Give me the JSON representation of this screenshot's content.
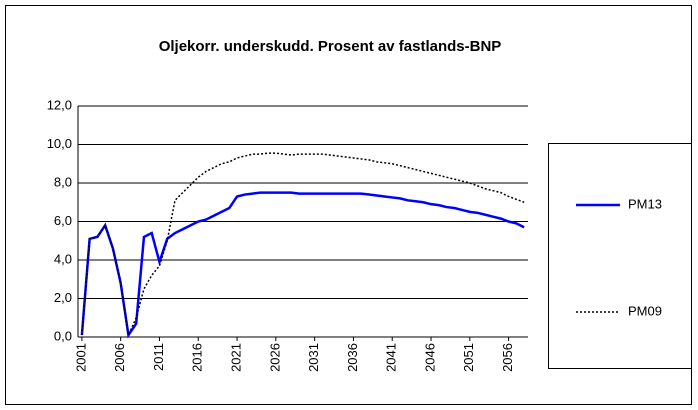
{
  "chart_data": {
    "type": "line",
    "title": "Oljekorr. underskudd. Prosent av fastlands-BNP",
    "categories": [
      "2001",
      null,
      null,
      null,
      null,
      "2006",
      null,
      null,
      null,
      null,
      "2011",
      null,
      null,
      null,
      null,
      "2016",
      null,
      null,
      null,
      null,
      "2021",
      null,
      null,
      null,
      null,
      "2026",
      null,
      null,
      null,
      null,
      "2031",
      null,
      null,
      null,
      null,
      "2036",
      null,
      null,
      null,
      null,
      "2041",
      null,
      null,
      null,
      null,
      "2046",
      null,
      null,
      null,
      null,
      "2051",
      null,
      null,
      null,
      null,
      "2056",
      null,
      null
    ],
    "series": [
      {
        "name": "PM13",
        "color": "#0000ff",
        "dash": "solid",
        "values": [
          0.1,
          5.1,
          5.2,
          5.8,
          4.6,
          2.8,
          0.1,
          0.7,
          5.2,
          5.4,
          3.9,
          5.1,
          5.4,
          5.6,
          5.8,
          6.0,
          6.1,
          6.3,
          6.5,
          6.7,
          7.3,
          7.4,
          7.45,
          7.5,
          7.5,
          7.5,
          7.5,
          7.5,
          7.45,
          7.45,
          7.45,
          7.45,
          7.45,
          7.45,
          7.45,
          7.45,
          7.45,
          7.4,
          7.35,
          7.3,
          7.25,
          7.2,
          7.1,
          7.05,
          7.0,
          6.9,
          6.85,
          6.75,
          6.7,
          6.6,
          6.5,
          6.45,
          6.35,
          6.25,
          6.15,
          6.0,
          5.9,
          5.7
        ]
      },
      {
        "name": "PM09",
        "color": "#000000",
        "dash": "dotted",
        "values": [
          0.1,
          5.1,
          5.2,
          5.8,
          4.6,
          2.8,
          0.1,
          1.0,
          2.5,
          3.2,
          3.7,
          5.0,
          7.1,
          7.5,
          7.9,
          8.3,
          8.6,
          8.8,
          9.0,
          9.1,
          9.3,
          9.4,
          9.5,
          9.5,
          9.55,
          9.55,
          9.5,
          9.45,
          9.5,
          9.5,
          9.5,
          9.5,
          9.45,
          9.4,
          9.35,
          9.3,
          9.25,
          9.2,
          9.1,
          9.05,
          9.0,
          8.9,
          8.8,
          8.7,
          8.6,
          8.5,
          8.4,
          8.3,
          8.2,
          8.1,
          8.0,
          7.85,
          7.7,
          7.6,
          7.5,
          7.3,
          7.15,
          7.0
        ]
      }
    ],
    "ylim": [
      0,
      12
    ],
    "yticks": [
      {
        "value": 0,
        "label": "0,0"
      },
      {
        "value": 2,
        "label": "2,0"
      },
      {
        "value": 4,
        "label": "4,0"
      },
      {
        "value": 6,
        "label": "6,0"
      },
      {
        "value": 8,
        "label": "8,0"
      },
      {
        "value": 10,
        "label": "10,0"
      },
      {
        "value": 12,
        "label": "12,0"
      }
    ],
    "grid": true,
    "legend": "right"
  }
}
